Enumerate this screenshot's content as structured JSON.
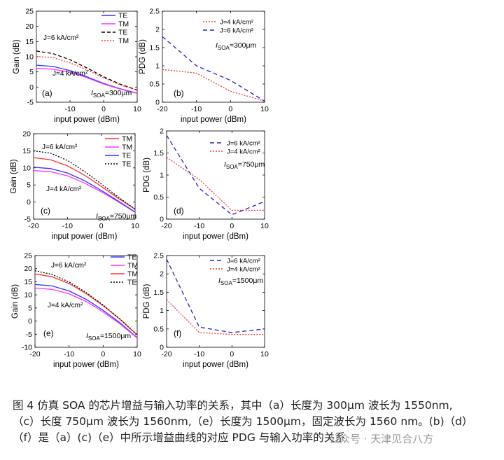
{
  "chart_data": [
    {
      "id": "a",
      "type": "line",
      "panel_label": "(a)",
      "xlabel": "input power (dBm)",
      "ylabel": "Gain (dB)",
      "xlim": [
        -20,
        10
      ],
      "ylim": [
        -5,
        25
      ],
      "xticks": [
        "-10",
        "0",
        "10"
      ],
      "yticks": [
        "-5",
        "0",
        "5",
        "10",
        "15",
        "20",
        "25"
      ],
      "annotations": [
        {
          "text": "J=6 kA/cm²",
          "group": "high"
        },
        {
          "text": "J=4 kA/cm²",
          "group": "low"
        }
      ],
      "soa_label": {
        "prefix": "I",
        "sub": "SOA",
        "value": "=300μm"
      },
      "legend": [
        {
          "label": "TE",
          "color": "#3333ff",
          "dash": ""
        },
        {
          "label": "TM",
          "color": "#ff33ff",
          "dash": ""
        },
        {
          "label": "TE",
          "color": "#000000",
          "dash": "5,3"
        },
        {
          "label": "TM",
          "color": "#ff3333",
          "dash": "2,2"
        }
      ],
      "series": [
        {
          "name": "TE",
          "color": "#3333ff",
          "dash": "",
          "x": [
            -20,
            -15,
            -10,
            -5,
            0,
            5,
            10
          ],
          "y": [
            7.2,
            6.8,
            5.4,
            3.4,
            1.2,
            -0.6,
            -2
          ]
        },
        {
          "name": "TM",
          "color": "#ff33ff",
          "dash": "",
          "x": [
            -20,
            -15,
            -10,
            -5,
            0,
            5,
            10
          ],
          "y": [
            6.2,
            5.9,
            4.9,
            3.1,
            1,
            -0.7,
            -2.1
          ]
        },
        {
          "name": "TE",
          "color": "#000000",
          "dash": "5,3",
          "x": [
            -20,
            -15,
            -10,
            -5,
            0,
            5,
            10
          ],
          "y": [
            11.9,
            11,
            9,
            6.3,
            3.4,
            0.9,
            -1
          ]
        },
        {
          "name": "TM",
          "color": "#ff3333",
          "dash": "2,2",
          "x": [
            -20,
            -15,
            -10,
            -5,
            0,
            5,
            10
          ],
          "y": [
            10.1,
            9.7,
            8,
            5.7,
            3,
            0.7,
            -1.1
          ]
        }
      ]
    },
    {
      "id": "b",
      "type": "line",
      "panel_label": "(b)",
      "xlabel": "input power (dBm)",
      "ylabel": "PDG (dB)",
      "xlim": [
        -20,
        10
      ],
      "ylim": [
        0,
        2.5
      ],
      "xticks": [
        "-20",
        "-10",
        "0",
        "10"
      ],
      "yticks": [
        "0",
        "0.5",
        "1",
        "1.5",
        "2",
        "2.5"
      ],
      "soa_label": {
        "prefix": "I",
        "sub": "SOA",
        "value": "=300μm"
      },
      "legend": [
        {
          "label": "J=4 kA/cm²",
          "color": "#ff3333",
          "dash": "2,2"
        },
        {
          "label": "J=6 kA/cm²",
          "color": "#2222cc",
          "dash": "6,4"
        }
      ],
      "series": [
        {
          "name": "J=4 kA/cm²",
          "color": "#ff3333",
          "dash": "2,2",
          "x": [
            -20,
            -10,
            0,
            10
          ],
          "y": [
            0.9,
            0.8,
            0.3,
            0.03
          ]
        },
        {
          "name": "J=6 kA/cm²",
          "color": "#2222cc",
          "dash": "6,4",
          "x": [
            -20,
            -10,
            0,
            10
          ],
          "y": [
            1.8,
            1.0,
            0.6,
            0.03
          ]
        }
      ]
    },
    {
      "id": "c",
      "type": "line",
      "panel_label": "(c)",
      "xlabel": "input power (dBm)",
      "ylabel": "Gain (dB)",
      "xlim": [
        -20,
        10
      ],
      "ylim": [
        -5,
        20
      ],
      "xticks": [
        "-20",
        "-10",
        "0",
        "10"
      ],
      "yticks": [
        "-5",
        "0",
        "5",
        "10",
        "15",
        "20"
      ],
      "annotations": [
        {
          "text": "J=6 kA/cm²",
          "group": "high"
        },
        {
          "text": "J=4 kA/cm²",
          "group": "low"
        }
      ],
      "soa_label": {
        "prefix": "I",
        "sub": "SOA",
        "value": "=750μm"
      },
      "legend": [
        {
          "label": "TM",
          "color": "#ff3333",
          "dash": ""
        },
        {
          "label": "TM",
          "color": "#ff33ff",
          "dash": ""
        },
        {
          "label": "TE",
          "color": "#3333ff",
          "dash": ""
        },
        {
          "label": "TE",
          "color": "#000000",
          "dash": "2,2"
        }
      ],
      "series": [
        {
          "name": "TM",
          "color": "#ff3333",
          "dash": "",
          "x": [
            -20,
            -15,
            -10,
            -5,
            0,
            5,
            10
          ],
          "y": [
            13,
            12.4,
            10.6,
            7.9,
            4.6,
            1.1,
            -2.1
          ]
        },
        {
          "name": "TM",
          "color": "#ff33ff",
          "dash": "",
          "x": [
            -20,
            -15,
            -10,
            -5,
            0,
            5,
            10
          ],
          "y": [
            9.2,
            8.9,
            7.7,
            5.6,
            3,
            0.1,
            -3
          ]
        },
        {
          "name": "TE",
          "color": "#3333ff",
          "dash": "",
          "x": [
            -20,
            -15,
            -10,
            -5,
            0,
            5,
            10
          ],
          "y": [
            10.2,
            9.8,
            8.5,
            6.3,
            3.4,
            0.3,
            -2.9
          ]
        },
        {
          "name": "TE",
          "color": "#000000",
          "dash": "2,2",
          "x": [
            -20,
            -15,
            -10,
            -5,
            0,
            5,
            10
          ],
          "y": [
            15,
            14.3,
            12.2,
            9,
            5.3,
            1.5,
            -2.1
          ]
        }
      ]
    },
    {
      "id": "d",
      "type": "line",
      "panel_label": "(d)",
      "xlabel": "input power (dBm)",
      "ylabel": "PDG (dB)",
      "xlim": [
        -20,
        10
      ],
      "ylim": [
        0,
        2
      ],
      "xticks": [
        "-20",
        "-10",
        "0",
        "10"
      ],
      "yticks": [
        "0",
        "0.5",
        "1",
        "1.5",
        "2"
      ],
      "soa_label": {
        "prefix": "I",
        "sub": "SOA",
        "value": "=750μm"
      },
      "legend": [
        {
          "label": "J=6 kA/cm²",
          "color": "#2222cc",
          "dash": "6,4"
        },
        {
          "label": "J=4 kA/cm²",
          "color": "#ff3333",
          "dash": "2,2"
        }
      ],
      "series": [
        {
          "name": "J=6 kA/cm²",
          "color": "#2222cc",
          "dash": "6,4",
          "x": [
            -20,
            -10,
            0,
            10
          ],
          "y": [
            1.9,
            0.7,
            0.1,
            0.4
          ]
        },
        {
          "name": "J=4 kA/cm²",
          "color": "#ff3333",
          "dash": "2,2",
          "x": [
            -20,
            -10,
            0,
            10
          ],
          "y": [
            1.4,
            0.9,
            0.2,
            0.2
          ]
        }
      ]
    },
    {
      "id": "e",
      "type": "line",
      "panel_label": "(e)",
      "xlabel": "input power (dBm)",
      "ylabel": "Gain (dB)",
      "xlim": [
        -20,
        10
      ],
      "ylim": [
        -10,
        25
      ],
      "xticks": [
        "-20",
        "-10",
        "0",
        "10"
      ],
      "yticks": [
        "-10",
        "-5",
        "0",
        "5",
        "10",
        "15",
        "20",
        "25"
      ],
      "annotations": [
        {
          "text": "J=6 kA/cm²",
          "group": "high"
        },
        {
          "text": "J=4 kA/cm²",
          "group": "low"
        }
      ],
      "soa_label": {
        "prefix": "I",
        "sub": "SOA",
        "value": "=1500μm"
      },
      "legend": [
        {
          "label": "TE",
          "color": "#3333ff",
          "dash": ""
        },
        {
          "label": "TM",
          "color": "#ff33ff",
          "dash": ""
        },
        {
          "label": "TM",
          "color": "#ff3333",
          "dash": ""
        },
        {
          "label": "TE",
          "color": "#000000",
          "dash": "2,2"
        }
      ],
      "series": [
        {
          "name": "TE",
          "color": "#3333ff",
          "dash": "",
          "x": [
            -20,
            -15,
            -10,
            -5,
            0,
            5,
            10
          ],
          "y": [
            14,
            13.4,
            11.5,
            8.3,
            4.1,
            -0.7,
            -6.3
          ]
        },
        {
          "name": "TM",
          "color": "#ff33ff",
          "dash": "",
          "x": [
            -20,
            -15,
            -10,
            -5,
            0,
            5,
            10
          ],
          "y": [
            12.6,
            12.1,
            10.4,
            7.5,
            3.5,
            -1.1,
            -6.5
          ]
        },
        {
          "name": "TM",
          "color": "#ff3333",
          "dash": "",
          "x": [
            -20,
            -15,
            -10,
            -5,
            0,
            5,
            10
          ],
          "y": [
            18,
            16.9,
            14.3,
            10.5,
            5.9,
            0.6,
            -5.3
          ]
        },
        {
          "name": "TE",
          "color": "#000000",
          "dash": "2,2",
          "x": [
            -20,
            -15,
            -10,
            -5,
            0,
            5,
            10
          ],
          "y": [
            19.2,
            17.8,
            14.9,
            10.9,
            6.1,
            0.7,
            -5.3
          ]
        }
      ]
    },
    {
      "id": "f",
      "type": "line",
      "panel_label": "(f)",
      "xlabel": "input power (dBm)",
      "ylabel": "PDG (dB)",
      "xlim": [
        -20,
        10
      ],
      "ylim": [
        0,
        2.5
      ],
      "xticks": [
        "-20",
        "-10",
        "0",
        "10"
      ],
      "yticks": [
        "0",
        "0.5",
        "1",
        "1.5",
        "2",
        "2.5"
      ],
      "soa_label": {
        "prefix": "I",
        "sub": "SOA",
        "value": "=1500μm"
      },
      "legend": [
        {
          "label": "J=6 kA/cm²",
          "color": "#2222cc",
          "dash": "6,4"
        },
        {
          "label": "J=4 kA/cm²",
          "color": "#ff3333",
          "dash": "2,2"
        }
      ],
      "series": [
        {
          "name": "J=6 kA/cm²",
          "color": "#2222cc",
          "dash": "6,4",
          "x": [
            -20,
            -10,
            0,
            10
          ],
          "y": [
            2.4,
            0.55,
            0.4,
            0.5
          ]
        },
        {
          "name": "J=4 kA/cm²",
          "color": "#ff3333",
          "dash": "2,2",
          "x": [
            -20,
            -10,
            0,
            10
          ],
          "y": [
            1.3,
            0.4,
            0.35,
            0.35
          ]
        }
      ]
    }
  ],
  "caption": {
    "lines": [
      "图 4  仿真 SOA 的芯片增益与输入功率的关系，其中（a）长度为 300μm 波长为 1550nm,",
      "（c）长度 750μm 波长为 1560nm,（e）长度为 1500μm，固定波长为 1560 nm。(b)（d）",
      "（f）是（a）(c)（e）中所示增益曲线的对应 PDG 与输入功率的关系"
    ]
  },
  "watermark": "公众号 · 天津见合八方"
}
